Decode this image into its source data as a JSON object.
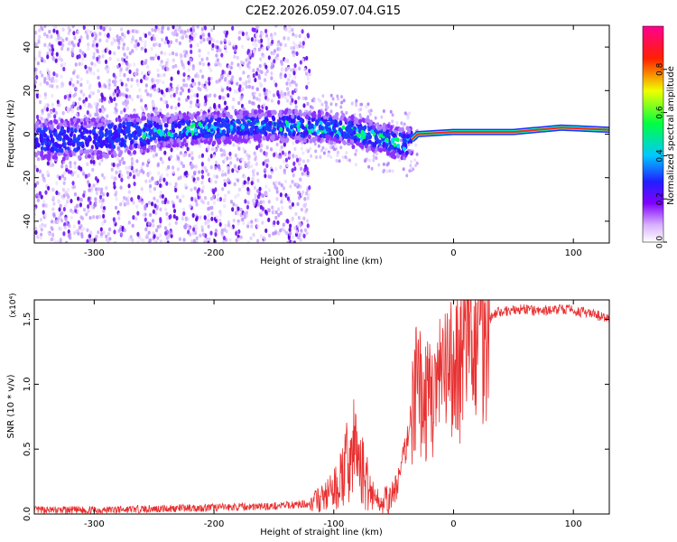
{
  "title": "C2E2.2026.059.07.04.G15",
  "chart_data": [
    {
      "type": "heatmap",
      "title": "C2E2.2026.059.07.04.G15",
      "xlabel": "Height of straight line (km)",
      "ylabel": "Frequency (Hz)",
      "xlim": [
        -350,
        130
      ],
      "ylim": [
        -50,
        50
      ],
      "x_ticks": [
        -300,
        -200,
        -100,
        0,
        100
      ],
      "y_ticks": [
        -40,
        -20,
        0,
        20,
        40
      ],
      "colorbar": {
        "label": "Normalized spectral amplitude",
        "range": [
          0,
          1
        ],
        "ticks": [
          "0.0",
          "0.2",
          "0.4",
          "0.6",
          "0.8"
        ],
        "colors": [
          "#ffffff",
          "#c080ff",
          "#6000ff",
          "#0040ff",
          "#00e0ff",
          "#00ff40",
          "#ffff00",
          "#ff0000",
          "#ff0090"
        ]
      },
      "ridge": [
        {
          "x": -350,
          "f": -3
        },
        {
          "x": -300,
          "f": -2
        },
        {
          "x": -250,
          "f": 1
        },
        {
          "x": -200,
          "f": 3
        },
        {
          "x": -150,
          "f": 4
        },
        {
          "x": -100,
          "f": 3
        },
        {
          "x": -60,
          "f": -2
        },
        {
          "x": -40,
          "f": -5
        },
        {
          "x": -30,
          "f": 0
        },
        {
          "x": 0,
          "f": 1
        },
        {
          "x": 50,
          "f": 1
        },
        {
          "x": 90,
          "f": 3
        },
        {
          "x": 130,
          "f": 2
        }
      ]
    },
    {
      "type": "line",
      "xlabel": "Height of straight line (km)",
      "ylabel": "SNR (10 * v/v)",
      "scale_note": "(x10⁴)",
      "xlim": [
        -350,
        130
      ],
      "ylim": [
        0,
        1.65
      ],
      "x_ticks": [
        -300,
        -200,
        -100,
        0,
        100
      ],
      "y_ticks": [
        "0.0",
        "0.5",
        "1.0",
        "1.5"
      ],
      "color": "#e83030",
      "series": [
        {
          "x": [
            -350,
            -300,
            -250,
            -200,
            -150,
            -120,
            -110,
            -100,
            -95,
            -90,
            -85,
            -80,
            -75,
            -70,
            -65,
            -60,
            -55,
            -50,
            -45,
            -40,
            -35,
            -30,
            -25,
            -20,
            -15,
            -10,
            -5,
            0,
            5,
            10,
            15,
            20,
            25,
            30,
            35,
            40,
            50,
            60,
            70,
            80,
            90,
            100,
            110,
            120,
            130
          ],
          "values": [
            0.03,
            0.03,
            0.04,
            0.05,
            0.06,
            0.08,
            0.12,
            0.18,
            0.25,
            0.35,
            0.5,
            0.45,
            0.3,
            0.2,
            0.12,
            0.08,
            0.1,
            0.15,
            0.3,
            0.5,
            0.8,
            1.0,
            0.85,
            0.9,
            0.95,
            1.0,
            1.05,
            1.1,
            1.2,
            1.3,
            1.35,
            1.4,
            1.45,
            1.5,
            1.55,
            1.56,
            1.57,
            1.58,
            1.56,
            1.57,
            1.58,
            1.57,
            1.55,
            1.53,
            1.5
          ]
        }
      ]
    }
  ]
}
